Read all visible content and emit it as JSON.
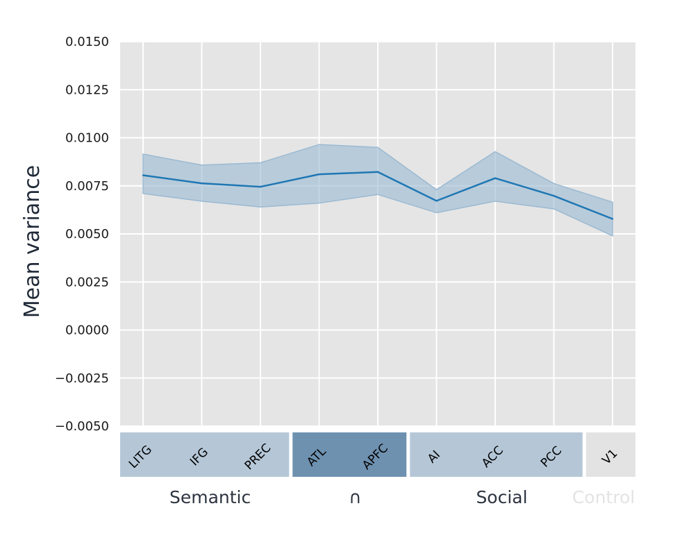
{
  "chart_data": {
    "type": "line",
    "ylabel": "Mean variance",
    "xlabel": "",
    "ylim": [
      -0.005,
      0.015
    ],
    "yticks": [
      "0.0150",
      "0.0125",
      "0.0100",
      "0.0075",
      "0.0050",
      "0.0025",
      "0.0000",
      "−0.0025",
      "−0.0050"
    ],
    "ytick_values": [
      0.015,
      0.0125,
      0.01,
      0.0075,
      0.005,
      0.0025,
      0.0,
      -0.0025,
      -0.005
    ],
    "categories": [
      "LITG",
      "IFG",
      "PREC",
      "ATL",
      "APFC",
      "AI",
      "ACC",
      "PCC",
      "V1"
    ],
    "series": [
      {
        "name": "Mean variance",
        "values": [
          0.00805,
          0.00763,
          0.00745,
          0.0081,
          0.00822,
          0.00672,
          0.0079,
          0.00698,
          0.00578
        ],
        "upper": [
          0.00915,
          0.00858,
          0.0087,
          0.00965,
          0.0095,
          0.0073,
          0.00928,
          0.00762,
          0.00665
        ],
        "lower": [
          0.0071,
          0.0067,
          0.0064,
          0.0066,
          0.00705,
          0.0061,
          0.0067,
          0.0063,
          0.0049
        ]
      }
    ],
    "groups": [
      {
        "label": "Semantic",
        "members": [
          "LITG",
          "IFG",
          "PREC"
        ],
        "color": "#b5c7d7",
        "label_color": "#2d3440"
      },
      {
        "label": "∩",
        "members": [
          "ATL",
          "APFC"
        ],
        "color": "#6f91b0",
        "label_color": "#2d3440"
      },
      {
        "label": "Social",
        "members": [
          "AI",
          "ACC",
          "PCC"
        ],
        "color": "#b5c7d7",
        "label_color": "#2d3440"
      },
      {
        "label": "Control",
        "members": [
          "V1"
        ],
        "color": "#e3e3e3",
        "label_color": "#e3e3e3"
      }
    ],
    "colors": {
      "line": "#1f77b4",
      "band": "#9ab9d2",
      "plot_bg": "#e5e5e5",
      "grid": "#ffffff"
    }
  }
}
